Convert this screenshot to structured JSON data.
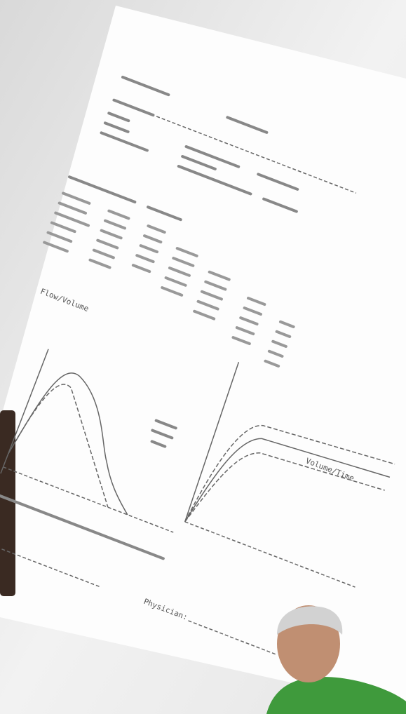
{
  "document": {
    "chart_labels": [
      "Flow/Volume",
      "Volume/Time"
    ],
    "signature_label": "Physician:"
  }
}
